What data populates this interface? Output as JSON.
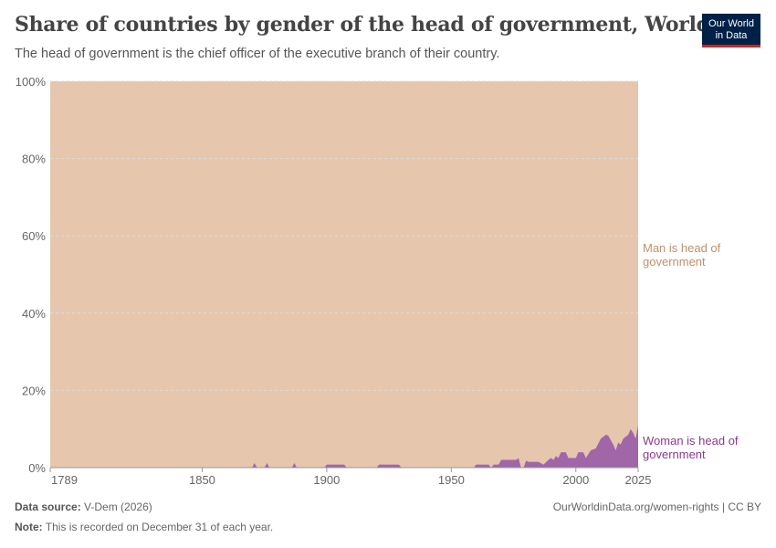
{
  "title": "Share of countries by gender of the head of government, World",
  "subtitle": "The head of government is the chief officer of the executive branch of their country.",
  "logo": [
    "Our World",
    "in Data"
  ],
  "footer": {
    "source_label": "Data source:",
    "source": "V-Dem (2026)",
    "url": "OurWorldinData.org/women-rights | CC BY",
    "note_label": "Note:",
    "note": "This is recorded on December 31 of each year."
  },
  "chart_data": {
    "type": "area",
    "stacked": true,
    "xlim": [
      1789,
      2025
    ],
    "ylim": [
      0,
      100
    ],
    "yticks": [
      "0%",
      "20%",
      "40%",
      "60%",
      "80%",
      "100%"
    ],
    "xticks": [
      1789,
      1850,
      1900,
      1950,
      2000,
      2025
    ],
    "grid": true,
    "series": [
      {
        "name": "Man is head of government",
        "color": "#e6c6ad",
        "label_color": "#c0906a",
        "note": "100 minus woman share"
      },
      {
        "name": "Woman is head of government",
        "color": "#a066a8",
        "label_color": "#8b3a8e",
        "points": [
          [
            1870,
            0
          ],
          [
            1871,
            1.2
          ],
          [
            1872,
            0
          ],
          [
            1875,
            0
          ],
          [
            1876,
            1.2
          ],
          [
            1877,
            0
          ],
          [
            1886,
            0
          ],
          [
            1887,
            1.2
          ],
          [
            1888,
            0
          ],
          [
            1899,
            0
          ],
          [
            1900,
            0.8
          ],
          [
            1907,
            0.8
          ],
          [
            1908,
            0
          ],
          [
            1920,
            0
          ],
          [
            1921,
            0.8
          ],
          [
            1929,
            0.8
          ],
          [
            1930,
            0
          ],
          [
            1959,
            0
          ],
          [
            1960,
            0.8
          ],
          [
            1965,
            0.8
          ],
          [
            1966,
            0
          ],
          [
            1967,
            0.8
          ],
          [
            1969,
            0.8
          ],
          [
            1970,
            2
          ],
          [
            1976,
            2
          ],
          [
            1977,
            2.5
          ],
          [
            1978,
            0
          ],
          [
            1979,
            0
          ],
          [
            1980,
            1.8
          ],
          [
            1981,
            1.5
          ],
          [
            1985,
            1.5
          ],
          [
            1987,
            0.8
          ],
          [
            1989,
            2
          ],
          [
            1990,
            2.5
          ],
          [
            1991,
            2
          ],
          [
            1992,
            3
          ],
          [
            1993,
            2.5
          ],
          [
            1994,
            4
          ],
          [
            1996,
            4
          ],
          [
            1997,
            2.5
          ],
          [
            2000,
            2.5
          ],
          [
            2001,
            4
          ],
          [
            2003,
            4
          ],
          [
            2004,
            2.5
          ],
          [
            2006,
            4.5
          ],
          [
            2008,
            5
          ],
          [
            2010,
            7.5
          ],
          [
            2012,
            8.5
          ],
          [
            2013,
            8.3
          ],
          [
            2015,
            6
          ],
          [
            2016,
            4.5
          ],
          [
            2017,
            6.5
          ],
          [
            2018,
            6
          ],
          [
            2019,
            7.5
          ],
          [
            2021,
            8.5
          ],
          [
            2022,
            10
          ],
          [
            2023,
            9
          ],
          [
            2024,
            7.5
          ],
          [
            2025,
            11
          ]
        ]
      }
    ]
  }
}
